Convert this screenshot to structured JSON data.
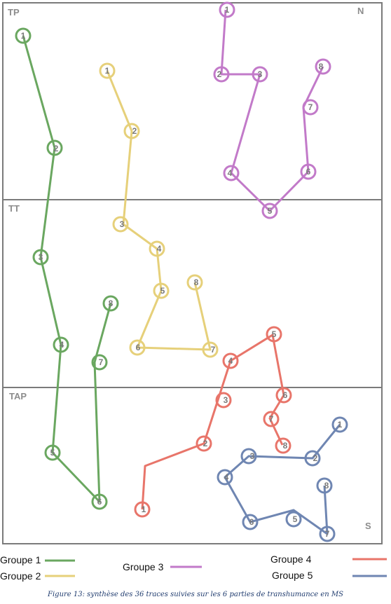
{
  "zones": {
    "tp": "TP",
    "tt": "TT",
    "tap": "TAP",
    "north": "N",
    "south": "S"
  },
  "groups": [
    {
      "key": "g1",
      "name": "Groupe 1",
      "color": "#6aa760",
      "points": [
        "1",
        "2",
        "3",
        "4",
        "5",
        "6",
        "7",
        "8"
      ]
    },
    {
      "key": "g2",
      "name": "Groupe 2",
      "color": "#e6d07a",
      "points": [
        "1",
        "2",
        "3",
        "4",
        "5",
        "6",
        "7",
        "8"
      ]
    },
    {
      "key": "g3",
      "name": "Groupe 3",
      "color": "#c27ac9",
      "points": [
        "1",
        "2",
        "3",
        "4",
        "5",
        "6",
        "7",
        "8"
      ]
    },
    {
      "key": "g4",
      "name": "Groupe 4",
      "color": "#e8756a",
      "points": [
        "1",
        "2",
        "3",
        "4",
        "5",
        "6",
        "7",
        "8"
      ]
    },
    {
      "key": "g5",
      "name": "Groupe 5",
      "color": "#6f86b2",
      "points": [
        "1",
        "2",
        "3",
        "4",
        "5",
        "6",
        "7",
        "8"
      ]
    }
  ],
  "caption": "Figure 13: synthèse des 36 traces suivies sur les 6 parties de transhumance en MS"
}
